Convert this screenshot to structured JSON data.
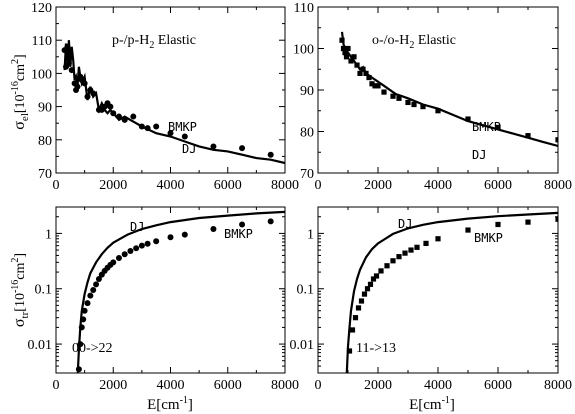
{
  "figure": {
    "ylabel_top_main": "σ",
    "ylabel_top_sub": "el",
    "ylabel_top_unit": "[10",
    "ylabel_top_exp": "-16",
    "ylabel_top_unit2": "cm",
    "ylabel_top_exp2": "2",
    "ylabel_top_close": "]",
    "ylabel_bot_main": "σ",
    "ylabel_bot_sub": "tr",
    "ylabel_bot_unit": "[10",
    "ylabel_bot_exp": "-16",
    "ylabel_bot_unit2": "cm",
    "ylabel_bot_exp2": "2",
    "ylabel_bot_close": "]",
    "xlabel_left": "E[cm",
    "xlabel_left_exp": "-1",
    "xlabel_left_close": "]",
    "xlabel_right": "E[cm",
    "xlabel_right_exp": "-1",
    "xlabel_right_close": "]"
  },
  "chart_data": [
    {
      "type": "line",
      "panel": "top-left",
      "title_parts": [
        "p-/p-H",
        "2",
        " Elastic"
      ],
      "labels": {
        "points": "BMKP",
        "curve": "DJ"
      },
      "xlim": [
        0,
        8000
      ],
      "ylim": [
        70,
        120
      ],
      "xticks": [
        0,
        2000,
        4000,
        6000,
        8000
      ],
      "yticks": [
        70,
        80,
        90,
        100,
        110,
        120
      ],
      "scale": "linear",
      "series": [
        {
          "name": "DJ",
          "style": "line",
          "x": [
            300,
            350,
            400,
            450,
            500,
            550,
            600,
            650,
            700,
            750,
            800,
            850,
            900,
            1000,
            1100,
            1200,
            1300,
            1400,
            1500,
            1600,
            1700,
            1800,
            1900,
            2000,
            2200,
            2400,
            2600,
            2800,
            3000,
            3500,
            4000,
            4500,
            5000,
            5500,
            6000,
            6500,
            7000,
            7500,
            8000
          ],
          "y": [
            101,
            109,
            103,
            110,
            102,
            108,
            104,
            98,
            99,
            96,
            102,
            99,
            97,
            99,
            92,
            96,
            93,
            94,
            89,
            91,
            89,
            88,
            89,
            88,
            86,
            87,
            86,
            85,
            84,
            82,
            81,
            79.5,
            78,
            77,
            76.5,
            75.5,
            74.5,
            74,
            73
          ]
        },
        {
          "name": "BMKP",
          "style": "circle",
          "x": [
            300,
            350,
            400,
            450,
            500,
            550,
            650,
            700,
            750,
            850,
            900,
            1000,
            1100,
            1200,
            1300,
            1500,
            1600,
            1700,
            1800,
            1900,
            2000,
            2200,
            2400,
            2700,
            3000,
            3200,
            3500,
            4000,
            4500,
            5500,
            6500,
            7500
          ],
          "y": [
            107,
            102,
            108,
            103,
            106,
            101,
            97,
            95,
            96,
            99,
            98,
            97,
            93,
            95,
            94,
            89,
            89,
            90,
            91,
            90,
            88,
            87,
            86,
            87,
            84,
            83.5,
            84,
            82,
            81,
            78,
            77.5,
            75.5
          ]
        }
      ]
    },
    {
      "type": "line",
      "panel": "top-right",
      "title_parts": [
        "o-/o-H",
        "2",
        " Elastic"
      ],
      "labels": {
        "points": "BMKP",
        "curve": "DJ"
      },
      "xlim": [
        0,
        8000
      ],
      "ylim": [
        70,
        110
      ],
      "xticks": [
        0,
        2000,
        4000,
        6000,
        8000
      ],
      "yticks": [
        70,
        80,
        90,
        100,
        110
      ],
      "scale": "linear",
      "series": [
        {
          "name": "DJ",
          "style": "line",
          "x": [
            800,
            850,
            900,
            1000,
            1100,
            1200,
            1300,
            1400,
            1500,
            1600,
            1800,
            2000,
            2200,
            2400,
            2600,
            2800,
            3000,
            3500,
            4000,
            4500,
            5000,
            5500,
            6000,
            6500,
            7000,
            7500,
            8000
          ],
          "y": [
            104,
            101,
            100,
            99,
            98,
            97,
            96,
            95,
            95.5,
            94,
            93,
            92,
            91,
            90,
            89,
            88.5,
            88,
            86.5,
            85.5,
            84,
            82.5,
            81.5,
            80.5,
            79.5,
            78.5,
            77.5,
            76.5
          ]
        },
        {
          "name": "BMKP",
          "style": "square",
          "x": [
            800,
            850,
            900,
            950,
            1000,
            1100,
            1200,
            1300,
            1400,
            1500,
            1600,
            1700,
            1800,
            1900,
            2000,
            2200,
            2500,
            2700,
            3000,
            3200,
            3500,
            4000,
            5000,
            6000,
            7000,
            8000
          ],
          "y": [
            102,
            100,
            99,
            98,
            100,
            97,
            98,
            96,
            94,
            95,
            94,
            93,
            91.5,
            91,
            91,
            89.5,
            88.5,
            88,
            87,
            86.5,
            86,
            85,
            83,
            81,
            79,
            78
          ]
        }
      ]
    },
    {
      "type": "line",
      "panel": "bottom-left",
      "title": "00->22",
      "labels": {
        "points": "BMKP",
        "curve": "DJ"
      },
      "xlim": [
        0,
        8000
      ],
      "ylim": [
        0.003,
        3
      ],
      "xticks": [
        0,
        2000,
        4000,
        6000,
        8000
      ],
      "yticks": [
        0.01,
        0.1,
        1
      ],
      "ytick_labels": [
        "0.01",
        "0.1",
        "1"
      ],
      "scale": "log-y",
      "series": [
        {
          "name": "DJ",
          "style": "line",
          "x": [
            760,
            800,
            850,
            900,
            1000,
            1100,
            1200,
            1400,
            1600,
            1800,
            2000,
            2500,
            3000,
            3500,
            4000,
            5000,
            6000,
            7000,
            8000
          ],
          "y": [
            0.003,
            0.008,
            0.02,
            0.04,
            0.08,
            0.13,
            0.19,
            0.3,
            0.42,
            0.55,
            0.68,
            0.95,
            1.2,
            1.4,
            1.6,
            1.9,
            2.1,
            2.3,
            2.45
          ]
        },
        {
          "name": "BMKP",
          "style": "circle",
          "x": [
            800,
            850,
            900,
            950,
            1000,
            1100,
            1200,
            1300,
            1400,
            1500,
            1600,
            1700,
            1800,
            1900,
            2000,
            2200,
            2400,
            2600,
            2800,
            3000,
            3200,
            3500,
            4000,
            4500,
            5500,
            6500,
            7500
          ],
          "y": [
            0.0035,
            0.01,
            0.02,
            0.028,
            0.04,
            0.055,
            0.075,
            0.095,
            0.12,
            0.15,
            0.18,
            0.21,
            0.24,
            0.27,
            0.3,
            0.36,
            0.42,
            0.48,
            0.54,
            0.6,
            0.65,
            0.72,
            0.85,
            0.95,
            1.2,
            1.45,
            1.65
          ]
        }
      ]
    },
    {
      "type": "line",
      "panel": "bottom-right",
      "title": "11->13",
      "labels": {
        "points": "BMKP",
        "curve": "DJ"
      },
      "xlim": [
        0,
        8000
      ],
      "ylim": [
        0.003,
        3
      ],
      "xticks": [
        0,
        2000,
        4000,
        6000,
        8000
      ],
      "yticks": [
        0.01,
        0.1,
        1
      ],
      "ytick_labels": [
        "0.01",
        "0.1",
        "1"
      ],
      "scale": "log-y",
      "series": [
        {
          "name": "DJ",
          "style": "line",
          "x": [
            960,
            1000,
            1050,
            1100,
            1200,
            1300,
            1400,
            1600,
            1800,
            2000,
            2500,
            3000,
            3500,
            4000,
            5000,
            6000,
            7000,
            8000
          ],
          "y": [
            0.003,
            0.009,
            0.02,
            0.04,
            0.09,
            0.15,
            0.22,
            0.37,
            0.52,
            0.66,
            0.98,
            1.23,
            1.43,
            1.6,
            1.85,
            2.05,
            2.2,
            2.35
          ]
        },
        {
          "name": "BMKP",
          "style": "square",
          "x": [
            1050,
            1150,
            1250,
            1350,
            1450,
            1550,
            1650,
            1750,
            1850,
            1950,
            2100,
            2300,
            2500,
            2700,
            2900,
            3100,
            3300,
            3600,
            4000,
            5000,
            6000,
            7000,
            8000
          ],
          "y": [
            0.0075,
            0.018,
            0.03,
            0.045,
            0.06,
            0.08,
            0.1,
            0.12,
            0.15,
            0.17,
            0.21,
            0.26,
            0.32,
            0.38,
            0.44,
            0.5,
            0.56,
            0.66,
            0.8,
            1.15,
            1.45,
            1.6,
            1.8
          ]
        }
      ]
    }
  ]
}
